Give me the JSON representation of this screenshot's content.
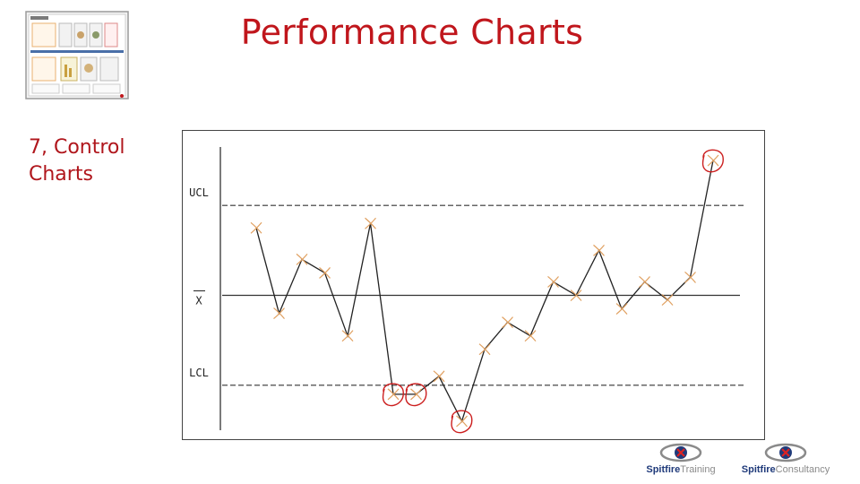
{
  "slide": {
    "title": "Performance Charts",
    "section_label_line1": "7, Control",
    "section_label_line2": "Charts"
  },
  "colors": {
    "title": "#c0161c",
    "section_label": "#b0161c",
    "data_line": "#222222",
    "point_marker": "#e0a060",
    "highlight_circle": "#cc1f1f",
    "limit_line": "#333333"
  },
  "chart_data": {
    "type": "line",
    "title": "",
    "xlabel": "",
    "ylabel": "",
    "reference_lines": [
      {
        "label": "UCL",
        "value": 1.0,
        "style": "dashed"
      },
      {
        "label": "X",
        "value": 0.0,
        "style": "solid",
        "overline": true
      },
      {
        "label": "LCL",
        "value": -1.0,
        "style": "dashed"
      }
    ],
    "ylim": [
      -1.5,
      1.65
    ],
    "x": [
      1,
      2,
      3,
      4,
      5,
      6,
      7,
      8,
      9,
      10,
      11,
      12,
      13,
      14,
      15,
      16,
      17,
      18,
      19,
      20,
      21
    ],
    "values": [
      0.75,
      -0.2,
      0.4,
      0.25,
      -0.45,
      0.8,
      -1.1,
      -1.1,
      -0.9,
      -1.4,
      -0.6,
      -0.3,
      -0.45,
      0.15,
      0.0,
      0.5,
      -0.15,
      0.15,
      -0.05,
      0.2,
      1.5
    ],
    "highlighted_points": [
      7,
      8,
      10,
      21
    ],
    "grid": false,
    "legend": "none"
  },
  "logos": {
    "training": {
      "brand": "Spitfire",
      "suffix": "Training",
      "icon": "spitfire-logo-icon"
    },
    "consultancy": {
      "brand": "Spitfire",
      "suffix": "Consultancy",
      "icon": "spitfire-logo-icon"
    }
  },
  "thumbnail": {
    "icon": "performance-board-thumbnail"
  }
}
